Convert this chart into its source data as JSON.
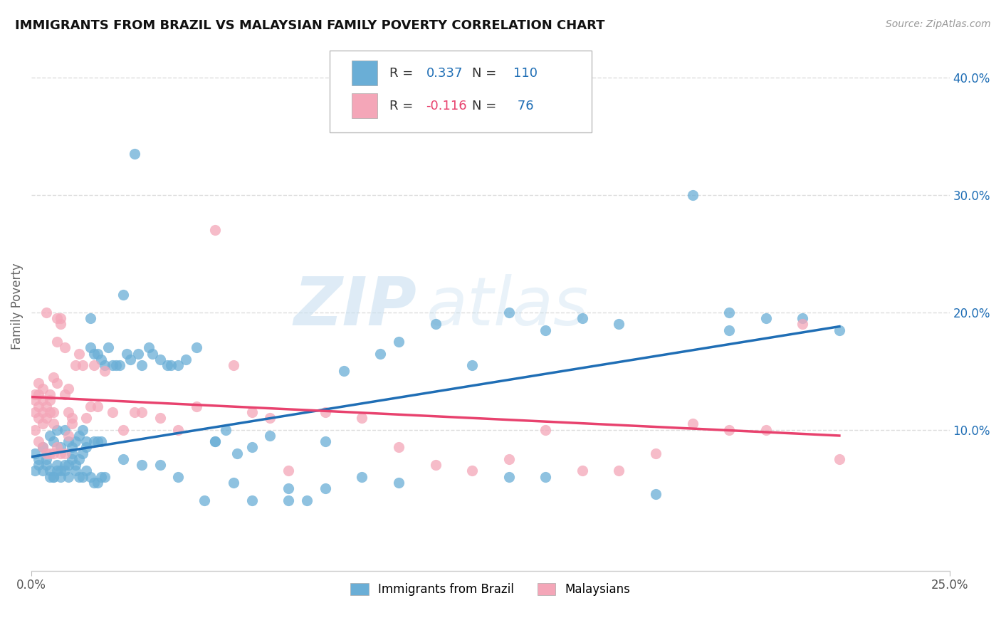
{
  "title": "IMMIGRANTS FROM BRAZIL VS MALAYSIAN FAMILY POVERTY CORRELATION CHART",
  "source": "Source: ZipAtlas.com",
  "ylabel": "Family Poverty",
  "ytick_labels": [
    "10.0%",
    "20.0%",
    "30.0%",
    "40.0%"
  ],
  "ytick_values": [
    0.1,
    0.2,
    0.3,
    0.4
  ],
  "xlim": [
    0.0,
    0.25
  ],
  "ylim": [
    -0.02,
    0.43
  ],
  "legend_bottom_label1": "Immigrants from Brazil",
  "legend_bottom_label2": "Malaysians",
  "color_blue": "#6aaed6",
  "color_pink": "#f4a6b8",
  "line_blue": "#1f6eb5",
  "line_pink": "#e8426e",
  "watermark_zip": "ZIP",
  "watermark_atlas": "atlas",
  "brazil_scatter_x": [
    0.001,
    0.002,
    0.003,
    0.004,
    0.005,
    0.005,
    0.006,
    0.006,
    0.007,
    0.007,
    0.008,
    0.008,
    0.009,
    0.009,
    0.01,
    0.01,
    0.011,
    0.011,
    0.012,
    0.012,
    0.013,
    0.013,
    0.014,
    0.014,
    0.015,
    0.015,
    0.016,
    0.016,
    0.017,
    0.017,
    0.018,
    0.018,
    0.019,
    0.019,
    0.02,
    0.021,
    0.022,
    0.023,
    0.024,
    0.025,
    0.026,
    0.027,
    0.028,
    0.029,
    0.03,
    0.032,
    0.033,
    0.035,
    0.037,
    0.038,
    0.04,
    0.042,
    0.045,
    0.047,
    0.05,
    0.053,
    0.056,
    0.06,
    0.065,
    0.07,
    0.075,
    0.08,
    0.085,
    0.09,
    0.095,
    0.1,
    0.11,
    0.12,
    0.13,
    0.14,
    0.15,
    0.16,
    0.17,
    0.18,
    0.19,
    0.2,
    0.001,
    0.002,
    0.003,
    0.004,
    0.005,
    0.006,
    0.007,
    0.008,
    0.009,
    0.01,
    0.011,
    0.012,
    0.013,
    0.014,
    0.015,
    0.016,
    0.017,
    0.018,
    0.019,
    0.02,
    0.025,
    0.03,
    0.035,
    0.04,
    0.05,
    0.055,
    0.06,
    0.07,
    0.08,
    0.1,
    0.13,
    0.19,
    0.21,
    0.22,
    0.14
  ],
  "brazil_scatter_y": [
    0.08,
    0.075,
    0.085,
    0.07,
    0.065,
    0.095,
    0.06,
    0.09,
    0.07,
    0.1,
    0.065,
    0.085,
    0.07,
    0.1,
    0.06,
    0.09,
    0.08,
    0.085,
    0.07,
    0.09,
    0.075,
    0.095,
    0.08,
    0.1,
    0.085,
    0.09,
    0.17,
    0.195,
    0.09,
    0.165,
    0.165,
    0.09,
    0.16,
    0.09,
    0.155,
    0.17,
    0.155,
    0.155,
    0.155,
    0.215,
    0.165,
    0.16,
    0.335,
    0.165,
    0.155,
    0.17,
    0.165,
    0.16,
    0.155,
    0.155,
    0.155,
    0.16,
    0.17,
    0.04,
    0.09,
    0.1,
    0.08,
    0.085,
    0.095,
    0.05,
    0.04,
    0.09,
    0.15,
    0.06,
    0.165,
    0.175,
    0.19,
    0.155,
    0.2,
    0.185,
    0.195,
    0.19,
    0.045,
    0.3,
    0.2,
    0.195,
    0.065,
    0.07,
    0.065,
    0.075,
    0.06,
    0.06,
    0.065,
    0.06,
    0.065,
    0.07,
    0.075,
    0.065,
    0.06,
    0.06,
    0.065,
    0.06,
    0.055,
    0.055,
    0.06,
    0.06,
    0.075,
    0.07,
    0.07,
    0.06,
    0.09,
    0.055,
    0.04,
    0.04,
    0.05,
    0.055,
    0.06,
    0.185,
    0.195,
    0.185,
    0.06
  ],
  "malay_scatter_x": [
    0.001,
    0.001,
    0.001,
    0.002,
    0.002,
    0.002,
    0.002,
    0.003,
    0.003,
    0.003,
    0.003,
    0.004,
    0.004,
    0.004,
    0.005,
    0.005,
    0.005,
    0.006,
    0.006,
    0.006,
    0.007,
    0.007,
    0.007,
    0.008,
    0.008,
    0.009,
    0.009,
    0.01,
    0.01,
    0.011,
    0.011,
    0.012,
    0.013,
    0.014,
    0.015,
    0.016,
    0.017,
    0.018,
    0.02,
    0.022,
    0.025,
    0.028,
    0.03,
    0.035,
    0.04,
    0.045,
    0.05,
    0.055,
    0.06,
    0.065,
    0.07,
    0.08,
    0.09,
    0.1,
    0.11,
    0.12,
    0.13,
    0.14,
    0.15,
    0.16,
    0.17,
    0.18,
    0.19,
    0.2,
    0.21,
    0.22,
    0.001,
    0.002,
    0.003,
    0.004,
    0.005,
    0.006,
    0.007,
    0.008,
    0.009,
    0.01
  ],
  "malay_scatter_y": [
    0.115,
    0.125,
    0.13,
    0.11,
    0.12,
    0.13,
    0.14,
    0.105,
    0.115,
    0.125,
    0.135,
    0.11,
    0.12,
    0.2,
    0.13,
    0.115,
    0.125,
    0.105,
    0.115,
    0.145,
    0.175,
    0.14,
    0.195,
    0.19,
    0.195,
    0.13,
    0.17,
    0.115,
    0.135,
    0.105,
    0.11,
    0.155,
    0.165,
    0.155,
    0.11,
    0.12,
    0.155,
    0.12,
    0.15,
    0.115,
    0.1,
    0.115,
    0.115,
    0.11,
    0.1,
    0.12,
    0.27,
    0.155,
    0.115,
    0.11,
    0.065,
    0.115,
    0.11,
    0.085,
    0.07,
    0.065,
    0.075,
    0.1,
    0.065,
    0.065,
    0.08,
    0.105,
    0.1,
    0.1,
    0.19,
    0.075,
    0.1,
    0.09,
    0.085,
    0.08,
    0.08,
    0.08,
    0.085,
    0.08,
    0.08,
    0.095
  ],
  "brazil_line_x": [
    0.0,
    0.22
  ],
  "brazil_line_y": [
    0.077,
    0.188
  ],
  "malay_line_x": [
    0.0,
    0.22
  ],
  "malay_line_y": [
    0.128,
    0.095
  ],
  "bg_color": "#ffffff",
  "grid_color": "#dddddd"
}
